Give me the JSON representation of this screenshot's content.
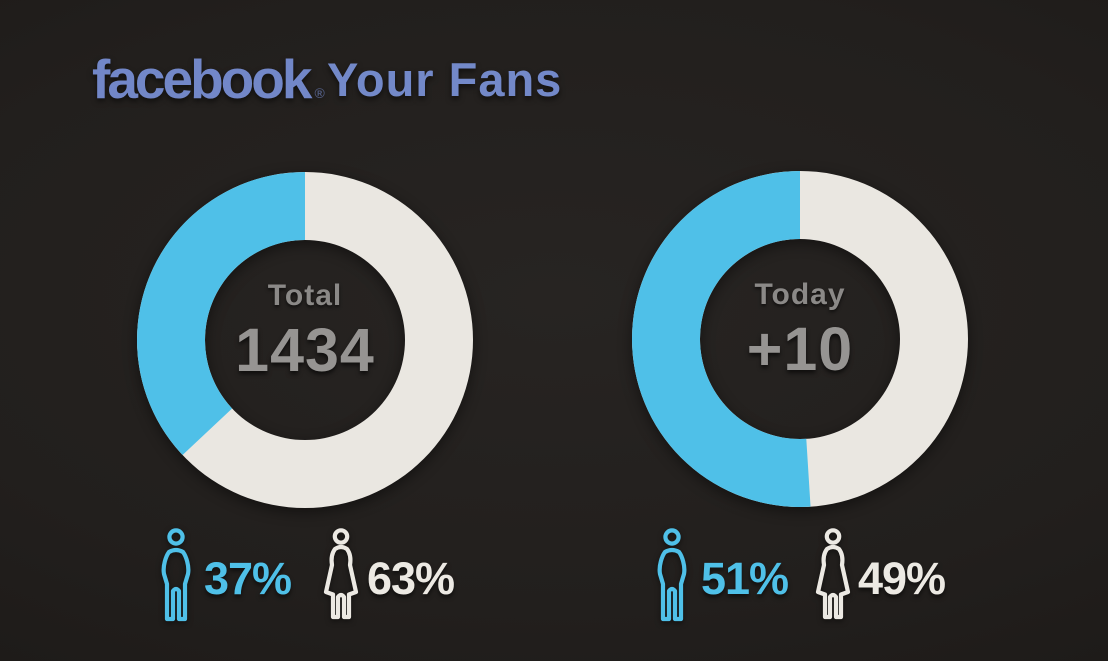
{
  "header": {
    "logo_text": "facebook",
    "registered_mark": "®",
    "page_title": "Your Fans"
  },
  "colors": {
    "background": "#211e1c",
    "male_blue": "#4fc0e8",
    "female_white": "#eae7e1",
    "logo_blue": "#7287c8",
    "center_label_gray": "#8b8987",
    "center_value_gray": "#969492"
  },
  "chart_data": [
    {
      "type": "pie",
      "variant": "donut",
      "title": "Total fans by gender",
      "center_label": "Total",
      "center_value": "1434",
      "start_angle": "top",
      "direction": "counterclockwise",
      "series": [
        {
          "name": "male",
          "icon": "male-icon",
          "label": "37%",
          "value": 37,
          "color": "#4fc0e8"
        },
        {
          "name": "female",
          "icon": "female-icon",
          "label": "63%",
          "value": 63,
          "color": "#eae7e1"
        }
      ]
    },
    {
      "type": "pie",
      "variant": "donut",
      "title": "New fans today by gender",
      "center_label": "Today",
      "center_value": "+10",
      "start_angle": "top",
      "direction": "counterclockwise",
      "series": [
        {
          "name": "male",
          "icon": "male-icon",
          "label": "51%",
          "value": 51,
          "color": "#4fc0e8"
        },
        {
          "name": "female",
          "icon": "female-icon",
          "label": "49%",
          "value": 49,
          "color": "#eae7e1"
        }
      ]
    }
  ]
}
